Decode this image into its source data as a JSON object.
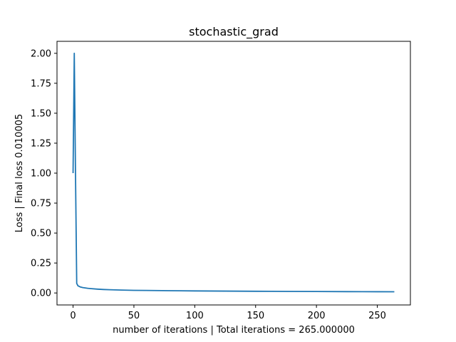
{
  "chart_data": {
    "type": "line",
    "title": "stochastic_grad",
    "xlabel": "number of iterations | Total iterations = 265.000000",
    "ylabel": "Loss | Final loss 0.010005",
    "xlim": [
      -13.2,
      277.2
    ],
    "ylim": [
      -0.1,
      2.1
    ],
    "xticks": [
      0,
      50,
      100,
      150,
      200,
      250
    ],
    "yticks": [
      0.0,
      0.25,
      0.5,
      0.75,
      1.0,
      1.25,
      1.5,
      1.75,
      2.0
    ],
    "xtick_labels": [
      "0",
      "50",
      "100",
      "150",
      "200",
      "250"
    ],
    "ytick_labels": [
      "0.00",
      "0.25",
      "0.50",
      "0.75",
      "1.00",
      "1.25",
      "1.50",
      "1.75",
      "2.00"
    ],
    "grid": false,
    "series": [
      {
        "color": "#1f77b4",
        "x": [
          0,
          1,
          2,
          3,
          4,
          5,
          6,
          8,
          10,
          12,
          15,
          20,
          25,
          30,
          40,
          50,
          60,
          80,
          100,
          125,
          150,
          175,
          200,
          225,
          250,
          264
        ],
        "y": [
          1.0,
          2.0,
          1.0,
          0.08,
          0.06,
          0.055,
          0.05,
          0.045,
          0.042,
          0.039,
          0.036,
          0.032,
          0.029,
          0.027,
          0.024,
          0.022,
          0.021,
          0.019,
          0.017,
          0.0155,
          0.0142,
          0.0131,
          0.0121,
          0.0112,
          0.0104,
          0.010005
        ]
      }
    ]
  }
}
